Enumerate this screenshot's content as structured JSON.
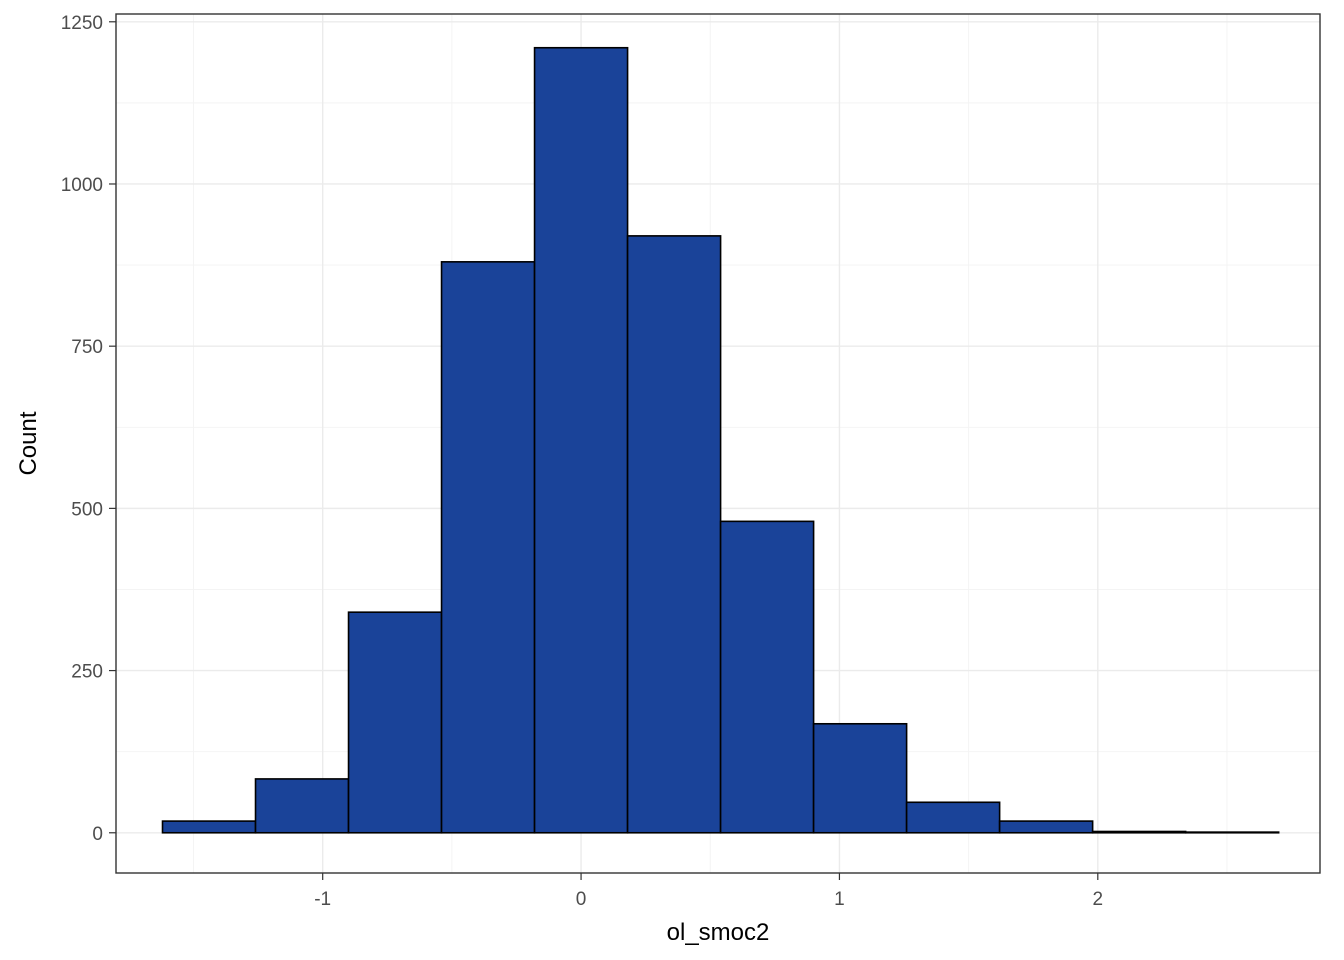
{
  "chart_data": {
    "type": "bar",
    "subtype": "histogram",
    "title": "",
    "xlabel": "ol_smoc2",
    "ylabel": "Count",
    "xlim": [
      -1.8,
      2.86
    ],
    "ylim": [
      -62,
      1262
    ],
    "x_ticks": [
      -1,
      0,
      1,
      2
    ],
    "x_tick_labels": [
      "-1",
      "0",
      "1",
      "2"
    ],
    "y_ticks": [
      0,
      250,
      500,
      750,
      1000,
      1250
    ],
    "y_tick_labels": [
      "0",
      "250",
      "500",
      "750",
      "1000",
      "1250"
    ],
    "bin_width": 0.36,
    "bins": [
      {
        "x0": -1.62,
        "x1": -1.26,
        "count": 18
      },
      {
        "x0": -1.26,
        "x1": -0.9,
        "count": 83
      },
      {
        "x0": -0.9,
        "x1": -0.54,
        "count": 340
      },
      {
        "x0": -0.54,
        "x1": -0.18,
        "count": 880
      },
      {
        "x0": -0.18,
        "x1": 0.18,
        "count": 1210
      },
      {
        "x0": 0.18,
        "x1": 0.54,
        "count": 920
      },
      {
        "x0": 0.54,
        "x1": 0.9,
        "count": 480
      },
      {
        "x0": 0.9,
        "x1": 1.26,
        "count": 168
      },
      {
        "x0": 1.26,
        "x1": 1.62,
        "count": 47
      },
      {
        "x0": 1.62,
        "x1": 1.98,
        "count": 18
      },
      {
        "x0": 1.98,
        "x1": 2.34,
        "count": 2
      },
      {
        "x0": 2.34,
        "x1": 2.7,
        "count": 1
      }
    ],
    "fill_color": "#1a4399",
    "outline_color": "#000000",
    "grid": true,
    "theme": "bw"
  }
}
